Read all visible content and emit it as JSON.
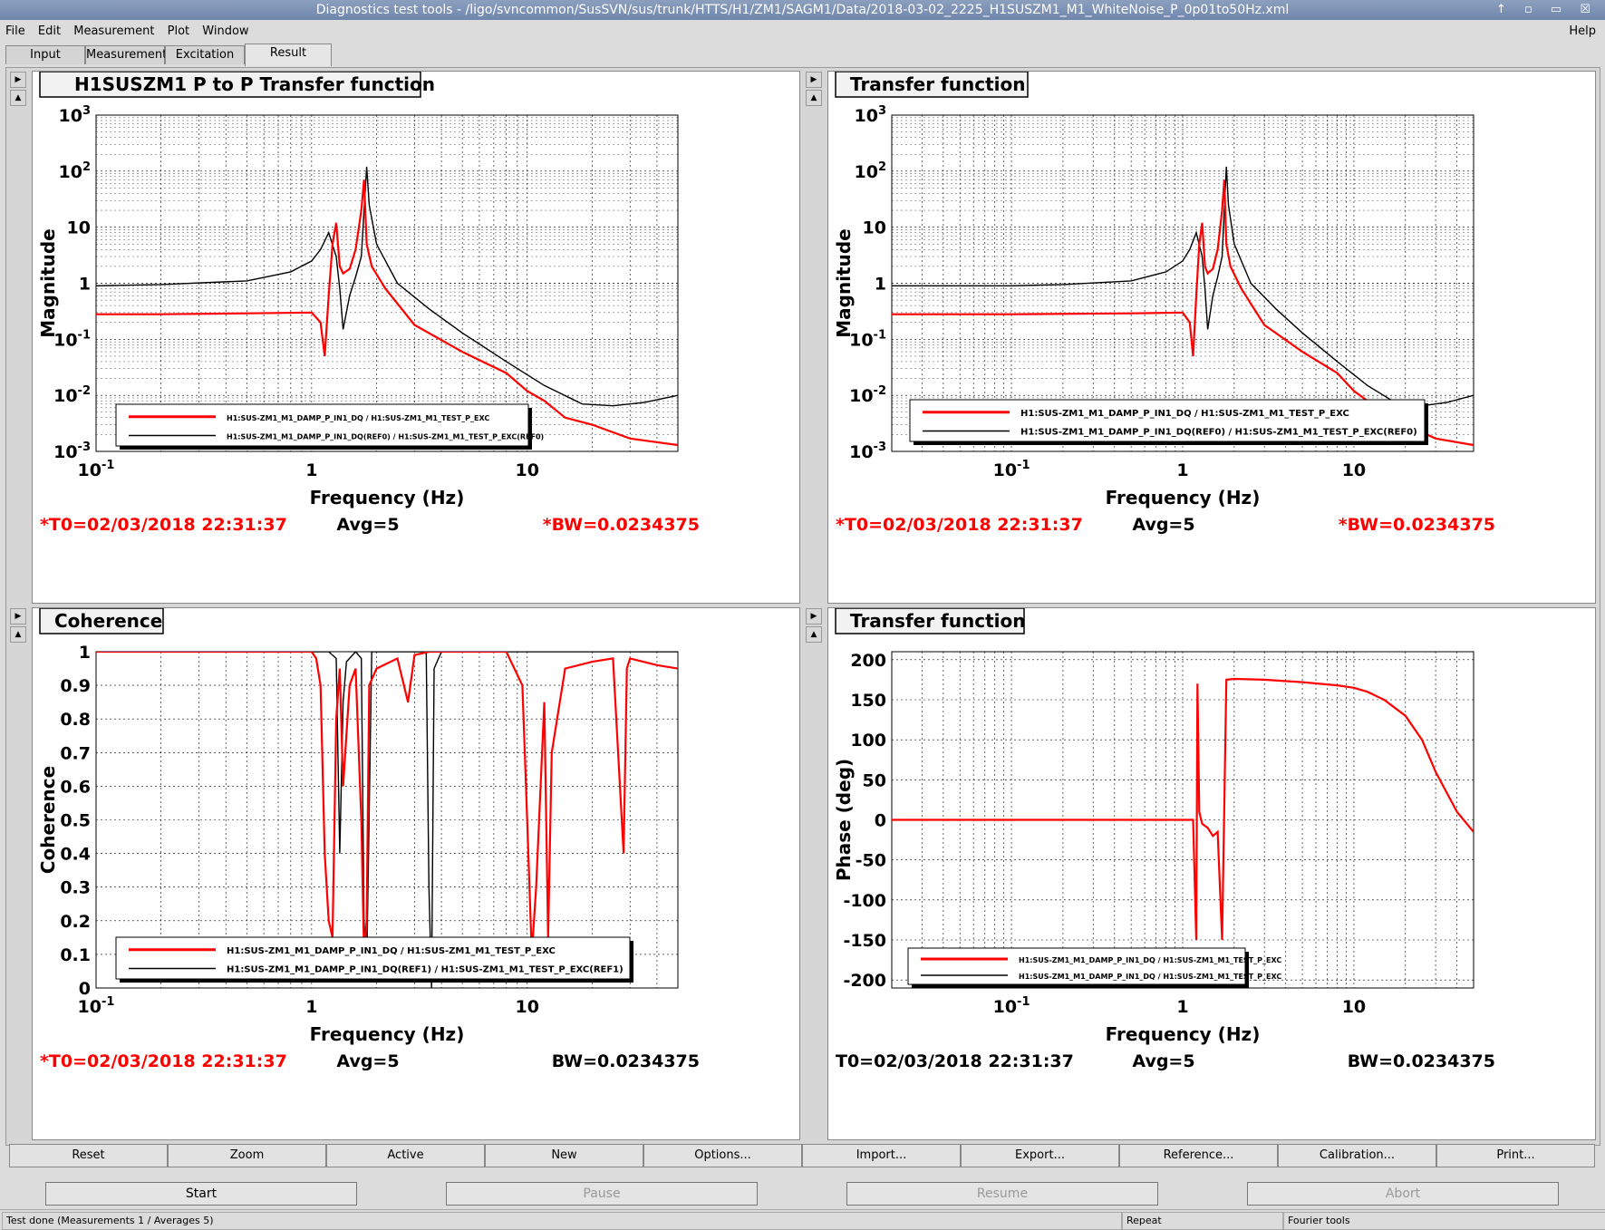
{
  "window_title": "Diagnostics test tools - /ligo/svncommon/SusSVN/sus/trunk/HTTS/H1/ZM1/SAGM1/Data/2018-03-02_2225_H1SUSZM1_M1_WhiteNoise_P_0p01to50Hz.xml",
  "window_buttons": "↑ ▫ ▭ ☒",
  "menu": [
    "File",
    "Edit",
    "Measurement",
    "Plot",
    "Window"
  ],
  "menu_help": "Help",
  "tabs": [
    "Input",
    "Measurement",
    "Excitation",
    "Result"
  ],
  "active_tab": "Result",
  "panels": [
    {
      "title": "H1SUSZM1 P to P Transfer function",
      "ylabel": "Magnitude",
      "xlabel": "Frequency (Hz)",
      "t0": "*T0=02/03/2018 22:31:37",
      "avg": "Avg=5",
      "bw": "*BW=0.0234375",
      "t0_color": "#ff0000",
      "bw_color": "#ff0000",
      "legend": [
        "H1:SUS-ZM1_M1_DAMP_P_IN1_DQ / H1:SUS-ZM1_M1_TEST_P_EXC",
        "H1:SUS-ZM1_M1_DAMP_P_IN1_DQ(REF0) / H1:SUS-ZM1_M1_TEST_P_EXC(REF0)"
      ]
    },
    {
      "title": "Transfer function",
      "ylabel": "Magnitude",
      "xlabel": "Frequency (Hz)",
      "t0": "*T0=02/03/2018 22:31:37",
      "avg": "Avg=5",
      "bw": "*BW=0.0234375",
      "t0_color": "#ff0000",
      "bw_color": "#ff0000",
      "legend": [
        "H1:SUS-ZM1_M1_DAMP_P_IN1_DQ / H1:SUS-ZM1_M1_TEST_P_EXC",
        "H1:SUS-ZM1_M1_DAMP_P_IN1_DQ(REF0) / H1:SUS-ZM1_M1_TEST_P_EXC(REF0)"
      ]
    },
    {
      "title": "Coherence",
      "ylabel": "Coherence",
      "xlabel": "Frequency (Hz)",
      "t0": "*T0=02/03/2018 22:31:37",
      "avg": "Avg=5",
      "bw": "BW=0.0234375",
      "t0_color": "#ff0000",
      "bw_color": "#000000",
      "legend": [
        "H1:SUS-ZM1_M1_DAMP_P_IN1_DQ / H1:SUS-ZM1_M1_TEST_P_EXC",
        "H1:SUS-ZM1_M1_DAMP_P_IN1_DQ(REF1) / H1:SUS-ZM1_M1_TEST_P_EXC(REF1)"
      ]
    },
    {
      "title": "Transfer function",
      "ylabel": "Phase (deg)",
      "xlabel": "Frequency (Hz)",
      "t0": "T0=02/03/2018 22:31:37",
      "avg": "Avg=5",
      "bw": "BW=0.0234375",
      "t0_color": "#000000",
      "bw_color": "#000000",
      "legend": [
        "H1:SUS-ZM1_M1_DAMP_P_IN1_DQ / H1:SUS-ZM1_M1_TEST_P_EXC",
        "H1:SUS-ZM1_M1_DAMP_P_IN1_DQ / H1:SUS-ZM1_M1_TEST_P_EXC"
      ]
    }
  ],
  "chart_data": [
    {
      "type": "line",
      "title": "H1SUSZM1 P to P Transfer function",
      "xlabel": "Frequency (Hz)",
      "ylabel": "Magnitude",
      "xscale": "log",
      "yscale": "log",
      "xlim": [
        0.1,
        50
      ],
      "ylim": [
        0.001,
        1000
      ],
      "xticks": [
        "10^-1",
        "1",
        "10"
      ],
      "yticks": [
        "10^-3",
        "10^-2",
        "10^-1",
        "1",
        "10",
        "10^2",
        "10^3"
      ],
      "grid": true,
      "legend_position": "bottom-left",
      "series": [
        {
          "name": "H1:SUS-ZM1_M1_DAMP_P_IN1_DQ / H1:SUS-ZM1_M1_TEST_P_EXC",
          "color": "#ff0000",
          "x": [
            0.1,
            0.2,
            0.5,
            1.0,
            1.1,
            1.15,
            1.2,
            1.25,
            1.3,
            1.35,
            1.4,
            1.5,
            1.6,
            1.7,
            1.75,
            1.8,
            1.9,
            2.2,
            3,
            5,
            8,
            10,
            12,
            15,
            20,
            30,
            50
          ],
          "y": [
            0.28,
            0.28,
            0.29,
            0.3,
            0.2,
            0.05,
            0.6,
            5,
            12,
            2,
            1.5,
            1.8,
            4,
            20,
            70,
            5,
            2,
            0.8,
            0.18,
            0.06,
            0.025,
            0.012,
            0.008,
            0.004,
            0.003,
            0.0017,
            0.0013
          ]
        },
        {
          "name": "H1:SUS-ZM1_M1_DAMP_P_IN1_DQ(REF0) / H1:SUS-ZM1_M1_TEST_P_EXC(REF0)",
          "color": "#000000",
          "x": [
            0.1,
            0.2,
            0.5,
            0.8,
            1.0,
            1.1,
            1.2,
            1.3,
            1.35,
            1.4,
            1.5,
            1.6,
            1.7,
            1.8,
            1.85,
            2.0,
            2.5,
            3.5,
            5,
            8,
            12,
            18,
            25,
            35,
            50
          ],
          "y": [
            0.9,
            0.95,
            1.1,
            1.6,
            2.5,
            4,
            8,
            3,
            0.8,
            0.15,
            0.6,
            1.3,
            3,
            120,
            25,
            5,
            1,
            0.35,
            0.13,
            0.04,
            0.015,
            0.007,
            0.0065,
            0.0075,
            0.01
          ]
        }
      ]
    },
    {
      "type": "line",
      "title": "Transfer function",
      "xlabel": "Frequency (Hz)",
      "ylabel": "Magnitude",
      "xscale": "log",
      "yscale": "log",
      "xlim": [
        0.02,
        50
      ],
      "ylim": [
        0.001,
        1000
      ],
      "xticks": [
        "10^-1",
        "1",
        "10"
      ],
      "yticks": [
        "10^-3",
        "10^-2",
        "10^-1",
        "1",
        "10",
        "10^2",
        "10^3"
      ],
      "grid": true,
      "legend_position": "bottom-left",
      "series": [
        {
          "name": "H1:SUS-ZM1_M1_DAMP_P_IN1_DQ / H1:SUS-ZM1_M1_TEST_P_EXC",
          "color": "#ff0000",
          "x": [
            0.02,
            0.05,
            0.1,
            0.5,
            1.0,
            1.1,
            1.15,
            1.2,
            1.25,
            1.3,
            1.35,
            1.4,
            1.5,
            1.6,
            1.7,
            1.75,
            1.8,
            1.9,
            2.2,
            3,
            5,
            8,
            10,
            12,
            15,
            20,
            30,
            50
          ],
          "y": [
            0.28,
            0.28,
            0.28,
            0.29,
            0.3,
            0.2,
            0.05,
            0.6,
            5,
            12,
            2,
            1.5,
            1.8,
            4,
            20,
            70,
            5,
            2,
            0.8,
            0.18,
            0.06,
            0.025,
            0.012,
            0.008,
            0.004,
            0.003,
            0.0017,
            0.0013
          ]
        },
        {
          "name": "H1:SUS-ZM1_M1_DAMP_P_IN1_DQ(REF0) / H1:SUS-ZM1_M1_TEST_P_EXC(REF0)",
          "color": "#000000",
          "x": [
            0.02,
            0.05,
            0.1,
            0.2,
            0.5,
            0.8,
            1.0,
            1.1,
            1.2,
            1.3,
            1.35,
            1.4,
            1.5,
            1.6,
            1.7,
            1.8,
            1.85,
            2.0,
            2.5,
            3.5,
            5,
            8,
            12,
            18,
            25,
            35,
            50
          ],
          "y": [
            0.9,
            0.9,
            0.9,
            0.95,
            1.1,
            1.6,
            2.5,
            4,
            8,
            3,
            0.8,
            0.15,
            0.6,
            1.3,
            3,
            120,
            25,
            5,
            1,
            0.35,
            0.13,
            0.04,
            0.015,
            0.007,
            0.0065,
            0.0075,
            0.01
          ]
        }
      ]
    },
    {
      "type": "line",
      "title": "Coherence",
      "xlabel": "Frequency (Hz)",
      "ylabel": "Coherence",
      "xscale": "log",
      "yscale": "linear",
      "xlim": [
        0.1,
        50
      ],
      "ylim": [
        0,
        1
      ],
      "xticks": [
        "10^-1",
        "1",
        "10"
      ],
      "yticks": [
        "0",
        "0.1",
        "0.2",
        "0.3",
        "0.4",
        "0.5",
        "0.6",
        "0.7",
        "0.8",
        "0.9",
        "1"
      ],
      "grid": true,
      "legend_position": "bottom",
      "series": [
        {
          "name": "H1:SUS-ZM1_M1_DAMP_P_IN1_DQ / H1:SUS-ZM1_M1_TEST_P_EXC",
          "color": "#ff0000",
          "x": [
            0.1,
            1.0,
            1.05,
            1.1,
            1.15,
            1.2,
            1.25,
            1.3,
            1.35,
            1.4,
            1.5,
            1.6,
            1.7,
            1.75,
            1.8,
            1.85,
            2.0,
            2.5,
            2.8,
            3,
            3.5,
            4,
            5,
            8,
            9.5,
            10,
            10.5,
            11,
            12,
            12.5,
            13,
            15,
            20,
            25,
            28,
            29,
            30,
            40,
            50
          ],
          "y": [
            1,
            1,
            0.98,
            0.9,
            0.4,
            0.2,
            0.15,
            0.8,
            0.95,
            0.6,
            0.9,
            0.95,
            0.5,
            0.1,
            0.2,
            0.9,
            0.95,
            0.98,
            0.85,
            0.99,
            1,
            1,
            1,
            1,
            0.9,
            0.5,
            0.1,
            0.3,
            0.85,
            0.15,
            0.7,
            0.95,
            0.97,
            0.98,
            0.4,
            0.95,
            0.98,
            0.96,
            0.95
          ]
        },
        {
          "name": "H1:SUS-ZM1_M1_DAMP_P_IN1_DQ(REF1) / H1:SUS-ZM1_M1_TEST_P_EXC(REF1)",
          "color": "#000000",
          "x": [
            0.1,
            1.0,
            1.2,
            1.3,
            1.35,
            1.4,
            1.45,
            1.6,
            1.7,
            1.75,
            1.8,
            1.9,
            2.5,
            3.4,
            3.5,
            3.6,
            3.7,
            4,
            10,
            50
          ],
          "y": [
            1,
            1,
            1,
            0.98,
            0.4,
            0.85,
            0.97,
            1,
            0.98,
            0.2,
            0.05,
            1,
            1,
            1,
            0.3,
            0,
            0.95,
            1,
            1,
            1
          ]
        }
      ]
    },
    {
      "type": "line",
      "title": "Transfer function",
      "xlabel": "Frequency (Hz)",
      "ylabel": "Phase (deg)",
      "xscale": "log",
      "yscale": "linear",
      "xlim": [
        0.02,
        50
      ],
      "ylim": [
        -210,
        210
      ],
      "xticks": [
        "10^-1",
        "1",
        "10"
      ],
      "yticks": [
        "-200",
        "-150",
        "-100",
        "-50",
        "0",
        "50",
        "100",
        "150",
        "200"
      ],
      "grid": true,
      "legend_position": "bottom-left",
      "series": [
        {
          "name": "H1:SUS-ZM1_M1_DAMP_P_IN1_DQ / H1:SUS-ZM1_M1_TEST_P_EXC",
          "color": "#ff0000",
          "x": [
            0.02,
            0.1,
            0.5,
            1.0,
            1.15,
            1.2,
            1.22,
            1.25,
            1.3,
            1.4,
            1.5,
            1.6,
            1.7,
            1.8,
            2.0,
            3,
            5,
            8,
            10,
            12,
            15,
            20,
            25,
            30,
            40,
            50
          ],
          "y": [
            0,
            0,
            0,
            0,
            0,
            -150,
            170,
            10,
            -5,
            -10,
            -20,
            -15,
            -150,
            175,
            176,
            175,
            172,
            168,
            165,
            160,
            150,
            130,
            100,
            60,
            10,
            -15
          ]
        },
        {
          "name": "H1:SUS-ZM1_M1_DAMP_P_IN1_DQ / H1:SUS-ZM1_M1_TEST_P_EXC",
          "color": "#000000",
          "x": [],
          "y": []
        }
      ]
    }
  ],
  "buttons": [
    "Reset",
    "Zoom",
    "Active",
    "New",
    "Options...",
    "Import...",
    "Export...",
    "Reference...",
    "Calibration...",
    "Print..."
  ],
  "controls": [
    "Start",
    "Pause",
    "Resume",
    "Abort"
  ],
  "status": {
    "message": "Test done (Measurements 1 / Averages 5)",
    "mode": "Repeat",
    "tool": "Fourier tools"
  }
}
